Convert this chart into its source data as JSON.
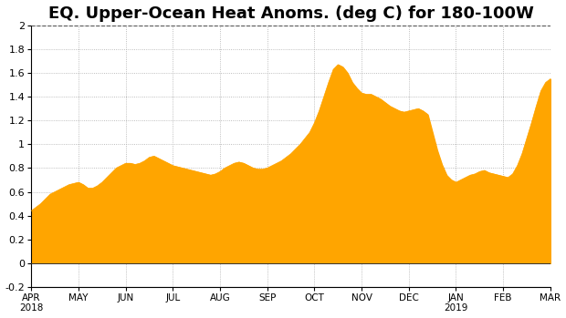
{
  "title": "EQ. Upper-Ocean Heat Anoms. (deg C) for 180-100W",
  "xlabels": [
    "APR\n2018",
    "MAY",
    "JUN",
    "JUL",
    "AUG",
    "SEP",
    "OCT",
    "NOV",
    "DEC",
    "JAN\n2019",
    "FEB",
    "MAR"
  ],
  "ylim": [
    -0.2,
    2.0
  ],
  "yticks": [
    -0.2,
    0.0,
    0.2,
    0.4,
    0.6,
    0.8,
    1.0,
    1.2,
    1.4,
    1.6,
    1.8,
    2.0
  ],
  "ytick_labels": [
    "-0.2",
    "0",
    "0.2",
    "0.4",
    "0.6",
    "0.8",
    "1",
    "1.2",
    "1.4",
    "1.6",
    "1.8",
    "2"
  ],
  "fill_color": "#FFA500",
  "background_color": "#ffffff",
  "title_fontsize": 13,
  "x": [
    0,
    1,
    2,
    3,
    4,
    5,
    6,
    7,
    8,
    9,
    10,
    11,
    12,
    13,
    14,
    15,
    16,
    17,
    18,
    19,
    20,
    21,
    22,
    23,
    24,
    25,
    26,
    27,
    28,
    29,
    30,
    31,
    32,
    33,
    34,
    35,
    36,
    37,
    38,
    39,
    40,
    41,
    42,
    43,
    44,
    45,
    46,
    47,
    48,
    49,
    50,
    51,
    52,
    53,
    54,
    55,
    56,
    57,
    58,
    59,
    60,
    61,
    62,
    63,
    64,
    65,
    66,
    67,
    68,
    69,
    70,
    71,
    72,
    73,
    74,
    75,
    76,
    77,
    78,
    79,
    80,
    81,
    82,
    83,
    84,
    85,
    86,
    87,
    88,
    89,
    90,
    91,
    92,
    93,
    94,
    95,
    96,
    97,
    98,
    99,
    100,
    101,
    102,
    103,
    104,
    105,
    106,
    107,
    108,
    109,
    110
  ],
  "y": [
    0.44,
    0.47,
    0.5,
    0.54,
    0.58,
    0.6,
    0.62,
    0.64,
    0.66,
    0.67,
    0.68,
    0.66,
    0.63,
    0.63,
    0.65,
    0.68,
    0.72,
    0.76,
    0.8,
    0.82,
    0.84,
    0.84,
    0.83,
    0.84,
    0.86,
    0.89,
    0.9,
    0.88,
    0.86,
    0.84,
    0.82,
    0.81,
    0.8,
    0.79,
    0.78,
    0.77,
    0.76,
    0.75,
    0.74,
    0.75,
    0.77,
    0.8,
    0.82,
    0.84,
    0.85,
    0.84,
    0.82,
    0.8,
    0.79,
    0.79,
    0.8,
    0.82,
    0.84,
    0.86,
    0.89,
    0.92,
    0.96,
    1.0,
    1.05,
    1.1,
    1.18,
    1.28,
    1.4,
    1.52,
    1.63,
    1.67,
    1.65,
    1.6,
    1.52,
    1.47,
    1.43,
    1.42,
    1.42,
    1.4,
    1.38,
    1.35,
    1.32,
    1.3,
    1.28,
    1.27,
    1.28,
    1.29,
    1.3,
    1.28,
    1.25,
    1.1,
    0.95,
    0.83,
    0.74,
    0.7,
    0.68,
    0.7,
    0.72,
    0.74,
    0.75,
    0.77,
    0.78,
    0.76,
    0.75,
    0.74,
    0.73,
    0.72,
    0.75,
    0.82,
    0.92,
    1.05,
    1.18,
    1.32,
    1.45,
    1.52,
    1.55
  ]
}
